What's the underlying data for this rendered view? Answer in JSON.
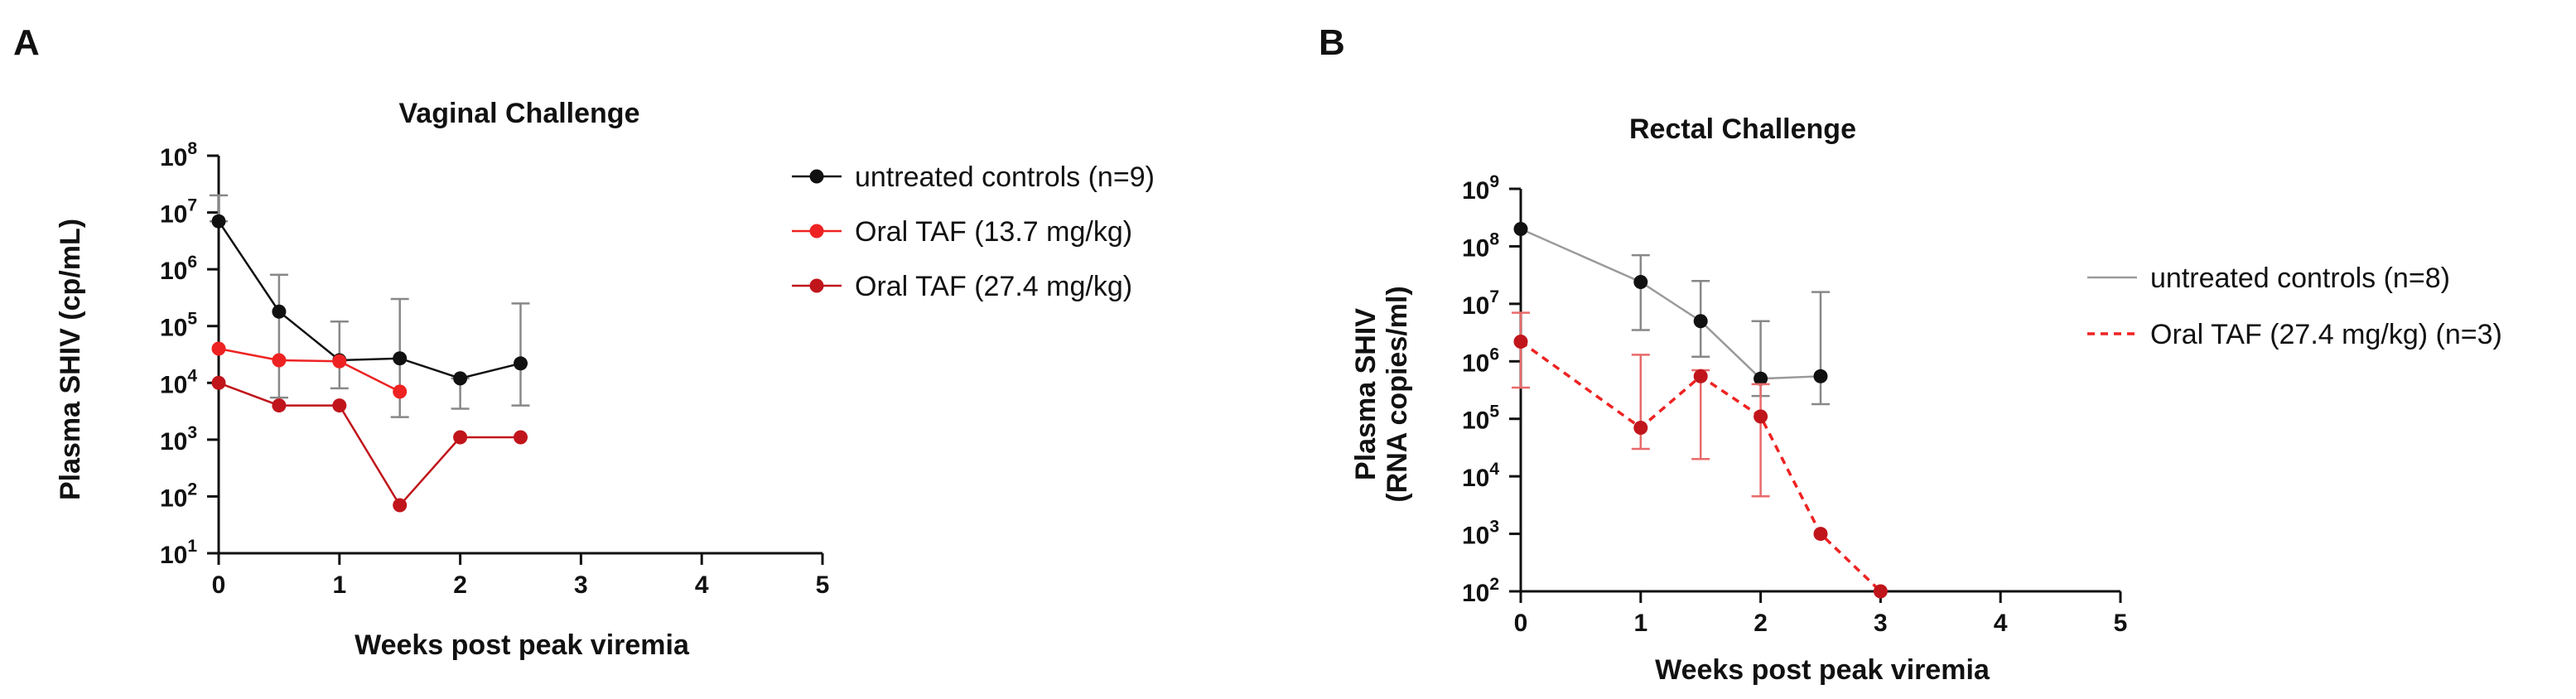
{
  "panels": [
    {
      "letter": "A",
      "title": "Vaginal Challenge",
      "ylabel": "Plasma  SHIV  (cp/mL)",
      "ylabel_lines": [
        "Plasma  SHIV  (cp/mL)"
      ],
      "xlabel": "Weeks post peak viremia"
    },
    {
      "letter": "B",
      "title": "Rectal Challenge",
      "ylabel": "Plasma SHIV (RNA copies/ml)",
      "ylabel_lines": [
        "Plasma SHIV",
        "(RNA copies/ml)"
      ],
      "xlabel": "Weeks post peak viremia"
    }
  ],
  "chart_data": [
    {
      "type": "line",
      "title": "Vaginal Challenge",
      "xlabel": "Weeks post peak viremia",
      "ylabel": "Plasma  SHIV  (cp/mL)",
      "xlim": [
        0,
        5
      ],
      "xticks": [
        "0",
        "1",
        "2",
        "3",
        "4",
        "5"
      ],
      "yscale": "log",
      "ylim_exp": [
        1,
        8
      ],
      "ytick_exponents": [
        "1",
        "2",
        "3",
        "4",
        "5",
        "6",
        "7",
        "8"
      ],
      "ytick_base": "10",
      "legend_position": "right",
      "series": [
        {
          "name": "untreated controls (n=9)",
          "color": "#111111",
          "dashed": false,
          "x": [
            0,
            0.5,
            1,
            1.5,
            2,
            2.5
          ],
          "y": [
            7000000,
            180000,
            25000,
            27000,
            12000,
            22000
          ],
          "err_low": [
            7000000,
            5500,
            8000,
            2500,
            3500,
            4000
          ],
          "err_high": [
            20000000,
            800000,
            120000,
            300000,
            12000,
            250000
          ]
        },
        {
          "name": "Oral TAF (13.7 mg/kg)",
          "color": "#ee2222",
          "dashed": false,
          "x": [
            0,
            0.5,
            1,
            1.5
          ],
          "y": [
            40000,
            25000,
            24000,
            7000
          ],
          "err_low": [],
          "err_high": []
        },
        {
          "name": "Oral TAF (27.4 mg/kg)",
          "color": "#c0151b",
          "dashed": false,
          "x": [
            0,
            0.5,
            1,
            1.5,
            2,
            2.5
          ],
          "y": [
            10000,
            4000,
            4000,
            70,
            1100,
            1100
          ],
          "err_low": [],
          "err_high": []
        }
      ]
    },
    {
      "type": "line",
      "title": "Rectal Challenge",
      "xlabel": "Weeks post peak viremia",
      "ylabel": "Plasma SHIV (RNA copies/ml)",
      "xlim": [
        0,
        5
      ],
      "xticks": [
        "0",
        "1",
        "2",
        "3",
        "4",
        "5"
      ],
      "yscale": "log",
      "ylim_exp": [
        2,
        9
      ],
      "ytick_exponents": [
        "2",
        "3",
        "4",
        "5",
        "6",
        "7",
        "8",
        "9"
      ],
      "ytick_base": "10",
      "legend_position": "right",
      "series": [
        {
          "name": "untreated controls (n=8)",
          "color": "#9a9a9a",
          "marker_color": "#111111",
          "dashed": false,
          "legend_marker": false,
          "x": [
            0,
            1,
            1.5,
            2,
            2.5
          ],
          "y": [
            200000000,
            24000000,
            5000000,
            500000,
            550000
          ],
          "err_low": [
            200000000,
            3500000,
            1200000,
            250000,
            180000
          ],
          "err_high": [
            200000000,
            70000000,
            25000000,
            5000000,
            16000000
          ]
        },
        {
          "name": "Oral TAF (27.4 mg/kg) (n=3)",
          "color": "#ee2222",
          "marker_color": "#c0151b",
          "dashed": true,
          "legend_marker": false,
          "x": [
            0,
            1,
            1.5,
            2,
            2.5,
            3
          ],
          "y": [
            2200000,
            70000,
            550000,
            110000,
            1000,
            100
          ],
          "err_low": [
            350000,
            30000,
            20000,
            4500,
            1000,
            100
          ],
          "err_high": [
            7000000,
            1300000,
            700000,
            400000,
            1000,
            100
          ]
        }
      ]
    }
  ]
}
